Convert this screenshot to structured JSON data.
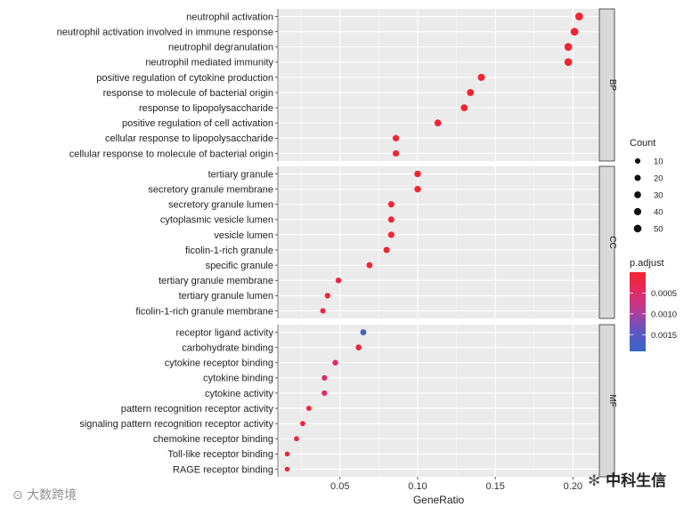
{
  "chart_data": {
    "type": "scatter",
    "xlabel": "GeneRatio",
    "x_ticks": [
      0.05,
      0.1,
      0.15,
      0.2
    ],
    "x_tick_labels": [
      "0.05",
      "0.10",
      "0.15",
      "0.20"
    ],
    "xlim": [
      0.01,
      0.217
    ],
    "grid": true,
    "facets": [
      {
        "name": "BP",
        "terms": [
          {
            "label": "neutrophil activation",
            "x": 0.204,
            "count": 54,
            "padj": 1e-05
          },
          {
            "label": "neutrophil activation involved in immune response",
            "x": 0.201,
            "count": 53,
            "padj": 1e-05
          },
          {
            "label": "neutrophil degranulation",
            "x": 0.197,
            "count": 52,
            "padj": 1e-05
          },
          {
            "label": "neutrophil mediated immunity",
            "x": 0.197,
            "count": 52,
            "padj": 1e-05
          },
          {
            "label": "positive regulation of cytokine production",
            "x": 0.141,
            "count": 37,
            "padj": 1e-05
          },
          {
            "label": "response to molecule of bacterial origin",
            "x": 0.134,
            "count": 35,
            "padj": 1e-05
          },
          {
            "label": "response to lipopolysaccharide",
            "x": 0.13,
            "count": 34,
            "padj": 1e-05
          },
          {
            "label": "positive regulation of cell activation",
            "x": 0.113,
            "count": 30,
            "padj": 3e-05
          },
          {
            "label": "cellular response to lipopolysaccharide",
            "x": 0.086,
            "count": 23,
            "padj": 3e-05
          },
          {
            "label": "cellular response to molecule of bacterial origin",
            "x": 0.086,
            "count": 23,
            "padj": 3e-05
          }
        ]
      },
      {
        "name": "CC",
        "terms": [
          {
            "label": "tertiary granule",
            "x": 0.1,
            "count": 26,
            "padj": 1e-05
          },
          {
            "label": "secretory granule membrane",
            "x": 0.1,
            "count": 26,
            "padj": 1e-05
          },
          {
            "label": "secretory granule lumen",
            "x": 0.083,
            "count": 22,
            "padj": 3e-05
          },
          {
            "label": "cytoplasmic vesicle lumen",
            "x": 0.083,
            "count": 22,
            "padj": 3e-05
          },
          {
            "label": "vesicle lumen",
            "x": 0.083,
            "count": 22,
            "padj": 3e-05
          },
          {
            "label": "ficolin-1-rich granule",
            "x": 0.08,
            "count": 21,
            "padj": 5e-05
          },
          {
            "label": "specific granule",
            "x": 0.069,
            "count": 18,
            "padj": 5e-05
          },
          {
            "label": "tertiary granule membrane",
            "x": 0.049,
            "count": 13,
            "padj": 0.0001
          },
          {
            "label": "tertiary granule lumen",
            "x": 0.042,
            "count": 11,
            "padj": 0.0001
          },
          {
            "label": "ficolin-1-rich granule membrane",
            "x": 0.039,
            "count": 10,
            "padj": 0.0002
          }
        ]
      },
      {
        "name": "MF",
        "terms": [
          {
            "label": "receptor ligand activity",
            "x": 0.065,
            "count": 17,
            "padj": 0.0017
          },
          {
            "label": "carbohydrate binding",
            "x": 0.062,
            "count": 16,
            "padj": 0.00015
          },
          {
            "label": "cytokine receptor binding",
            "x": 0.047,
            "count": 12,
            "padj": 0.0003
          },
          {
            "label": "cytokine binding",
            "x": 0.04,
            "count": 10,
            "padj": 0.0004
          },
          {
            "label": "cytokine activity",
            "x": 0.04,
            "count": 10,
            "padj": 0.0004
          },
          {
            "label": "pattern recognition receptor activity",
            "x": 0.03,
            "count": 8,
            "padj": 0.0001
          },
          {
            "label": "signaling pattern recognition receptor activity",
            "x": 0.026,
            "count": 7,
            "padj": 0.0001
          },
          {
            "label": "chemokine receptor binding",
            "x": 0.022,
            "count": 6,
            "padj": 0.0002
          },
          {
            "label": "Toll-like receptor binding",
            "x": 0.016,
            "count": 4,
            "padj": 5e-05
          },
          {
            "label": "RAGE receptor binding",
            "x": 0.016,
            "count": 4,
            "padj": 5e-05
          }
        ]
      }
    ],
    "legend_count": {
      "title": "Count",
      "values": [
        10,
        20,
        30,
        40,
        50
      ],
      "labels": [
        "10",
        "20",
        "30",
        "40",
        "50"
      ]
    },
    "legend_padj": {
      "title": "p.adjust",
      "range": [
        0,
        0.0019
      ],
      "ticks": [
        0.0005,
        0.001,
        0.0015
      ],
      "labels": [
        "0.0005",
        "0.0010",
        "0.0015"
      ],
      "colors": [
        "#f22530",
        "#e32a64",
        "#b23e99",
        "#5b57c0",
        "#3a64c8"
      ]
    },
    "placement": {
      "legend": "right"
    }
  },
  "watermarks": {
    "left": "大数跨境",
    "right": "中科生信"
  }
}
